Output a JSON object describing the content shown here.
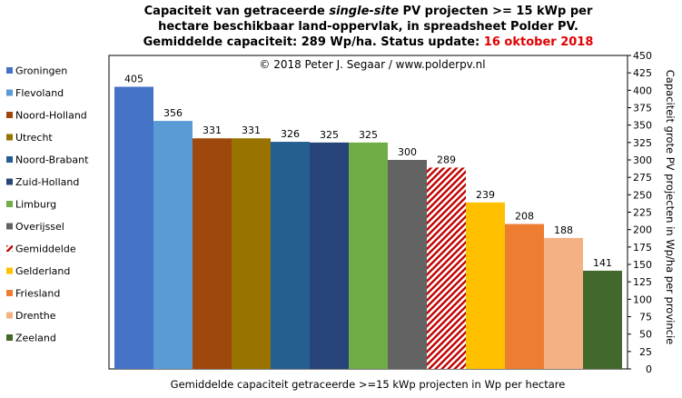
{
  "title": {
    "line1_pre": "Capaciteit van getraceerde ",
    "line1_em": "single-site",
    "line1_post": " PV projecten >= 15 kWp per",
    "line2": "hectare beschikbaar land-oppervlak, in spreadsheet Polder PV.",
    "line3_pre": "Gemiddelde capaciteit: 289 Wp/ha. Status update: ",
    "line3_date": "16 oktober 2018"
  },
  "copyright": "© 2018 Peter J. Segaar / www.polderpv.nl",
  "chart_data": {
    "type": "bar",
    "categories": [
      "Groningen",
      "Flevoland",
      "Noord-Holland",
      "Utrecht",
      "Noord-Brabant",
      "Zuid-Holland",
      "Limburg",
      "Overijssel",
      "Gemiddelde",
      "Gelderland",
      "Friesland",
      "Drenthe",
      "Zeeland"
    ],
    "values": [
      405,
      356,
      331,
      331,
      326,
      325,
      325,
      300,
      289,
      239,
      208,
      188,
      141
    ],
    "colors": [
      "#4472c4",
      "#5b9bd5",
      "#9e480e",
      "#997300",
      "#255e91",
      "#264478",
      "#70ad47",
      "#636363",
      "hatch-red",
      "#ffc000",
      "#ed7d31",
      "#f4b183",
      "#43682b"
    ],
    "highlight_color": "#c00000",
    "xlabel": "Gemiddelde capaciteit getraceerde >=15 kWp projecten in Wp per hectare",
    "ylabel": "Capaciteit grote PV projecten in Wp/ha per provincie",
    "ylim": [
      0,
      450
    ],
    "yticks": [
      0,
      25,
      50,
      75,
      100,
      125,
      150,
      175,
      200,
      225,
      250,
      275,
      300,
      325,
      350,
      375,
      400,
      425,
      450
    ],
    "legend_position": "left",
    "grid": false
  }
}
